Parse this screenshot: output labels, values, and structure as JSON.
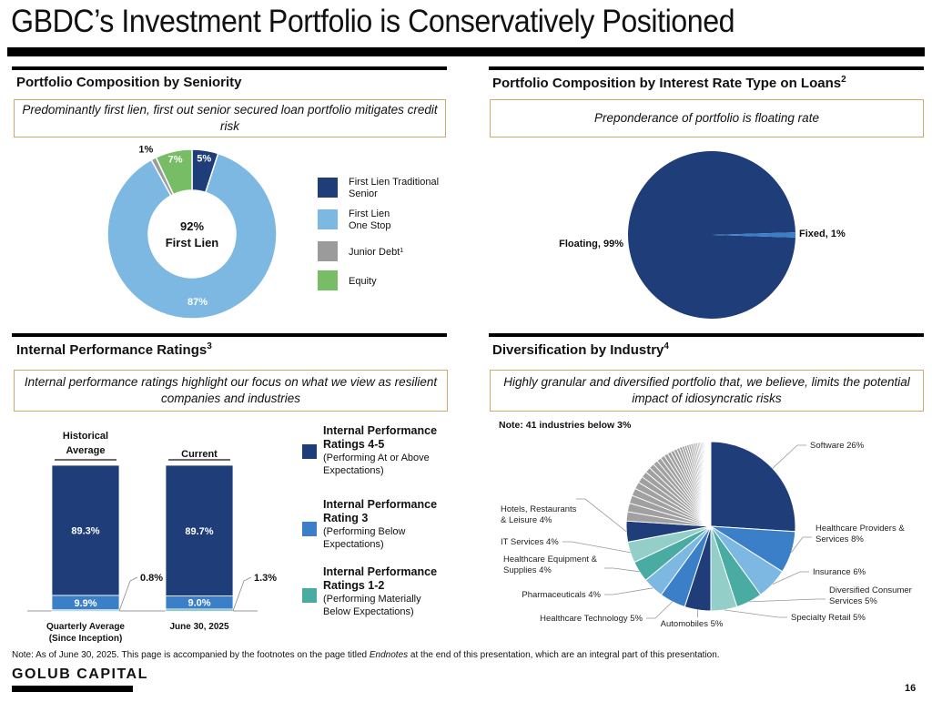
{
  "page": {
    "title": "GBDC’s Investment Portfolio is Conservatively Positioned",
    "footnote_prefix": "Note: As of June 30, 2025. This page is accompanied by the footnotes on the page titled ",
    "footnote_italic": "Endnotes",
    "footnote_suffix": " at the end of this presentation, which are an integral part of this presentation.",
    "brand": "GOLUB CAPITAL",
    "page_number": "16"
  },
  "sections": {
    "seniority": {
      "title": "Portfolio Composition by Seniority",
      "callout": "Predominantly first lien, first out senior secured loan portfolio mitigates credit risk",
      "center_value": "92%",
      "center_label": "First Lien"
    },
    "interest_rate": {
      "title": "Portfolio Composition by Interest Rate Type on Loans",
      "title_sup": "2",
      "callout": "Preponderance of portfolio is floating rate"
    },
    "performance": {
      "title": "Internal Performance Ratings",
      "title_sup": "3",
      "callout": "Internal performance ratings highlight our focus on what we view as resilient companies and industries"
    },
    "industry": {
      "title": "Diversification by Industry",
      "title_sup": "4",
      "callout": "Highly granular and diversified portfolio that, we believe, limits the potential impact of idiosyncratic risks",
      "note": "Note: 41 industries below 3%"
    }
  },
  "chart_data": [
    {
      "type": "pie",
      "variant": "donut",
      "title": "Portfolio Composition by Seniority",
      "slices": [
        {
          "label": "First Lien Traditional Senior",
          "legend_line1": "First Lien Traditional",
          "legend_line2": "Senior",
          "value": 5,
          "display": "5%",
          "color": "#1f3d78"
        },
        {
          "label": "First Lien One Stop",
          "legend_line1": "First Lien",
          "legend_line2": "One Stop",
          "value": 87,
          "display": "87%",
          "color": "#7db8e3"
        },
        {
          "label": "Junior Debt",
          "legend_line1": "Junior Debt",
          "legend_sup": "1",
          "legend_line2": "",
          "value": 1,
          "display": "1%",
          "color": "#9b9b9b"
        },
        {
          "label": "Equity",
          "legend_line1": "Equity",
          "legend_line2": "",
          "value": 7,
          "display": "7%",
          "color": "#76bd65"
        }
      ],
      "legend_placement": "right"
    },
    {
      "type": "pie",
      "title": "Portfolio Composition by Interest Rate Type on Loans",
      "slices": [
        {
          "label": "Floating",
          "value": 99,
          "display": "Floating, 99%",
          "color": "#1f3d78"
        },
        {
          "label": "Fixed",
          "value": 1,
          "display": "Fixed, 1%",
          "color": "#3b7fc8"
        }
      ]
    },
    {
      "type": "bar",
      "stacked": true,
      "title": "Internal Performance Ratings",
      "categories": [
        {
          "header": "Historical Average",
          "header_line1": "Historical",
          "header_line2": "Average",
          "label_line1": "Quarterly Average",
          "label_line2": "(Since Inception)"
        },
        {
          "header": "Current",
          "header_line1": "Current",
          "header_line2": "",
          "label_line1": "June 30, 2025",
          "label_line2": ""
        }
      ],
      "series": [
        {
          "name": "Internal Performance Ratings 4-5",
          "title_line1": "Internal Performance",
          "title_line2": "Ratings 4-5",
          "sub_line1": "(Performing At or Above",
          "sub_line2": "Expectations)",
          "values": [
            89.3,
            89.7
          ],
          "labels": [
            "89.3%",
            "89.7%"
          ],
          "color": "#1f3d78"
        },
        {
          "name": "Internal Performance Rating 3",
          "title_line1": "Internal Performance",
          "title_line2": "Rating 3",
          "sub_line1": "(Performing Below",
          "sub_line2": "Expectations)",
          "values": [
            9.9,
            9.0
          ],
          "labels": [
            "9.9%",
            "9.0%"
          ],
          "color": "#3b7fc8"
        },
        {
          "name": "Internal Performance Ratings 1-2",
          "title_line1": "Internal Performance",
          "title_line2": "Ratings 1-2",
          "sub_line1": "(Performing Materially",
          "sub_line2": "Below Expectations)",
          "values": [
            0.8,
            1.3
          ],
          "labels": [
            "0.8%",
            "1.3%"
          ],
          "color": "#4aaba3"
        }
      ],
      "ylim": [
        0,
        100
      ]
    },
    {
      "type": "pie",
      "title": "Diversification by Industry",
      "slices": [
        {
          "label": "Software",
          "value": 26,
          "display": "Software 26%",
          "color": "#1f3d78"
        },
        {
          "label": "Healthcare Providers & Services",
          "value": 8,
          "display_line1": "Healthcare Providers &",
          "display_line2": "Services 8%",
          "color": "#3b7fc8"
        },
        {
          "label": "Insurance",
          "value": 6,
          "display": "Insurance 6%",
          "color": "#7db8e3"
        },
        {
          "label": "Diversified Consumer Services",
          "value": 5,
          "display_line1": "Diversified Consumer",
          "display_line2": "Services 5%",
          "color": "#4aaba3"
        },
        {
          "label": "Specialty Retail",
          "value": 5,
          "display": "Specialty Retail 5%",
          "color": "#93cfc8"
        },
        {
          "label": "Automobiles",
          "value": 5,
          "display": "Automobiles 5%",
          "color": "#1f3d78"
        },
        {
          "label": "Healthcare Technology",
          "value": 5,
          "display": "Healthcare Technology 5%",
          "color": "#3b7fc8"
        },
        {
          "label": "Pharmaceuticals",
          "value": 4,
          "display": "Pharmaceuticals 4%",
          "color": "#7db8e3"
        },
        {
          "label": "Healthcare Equipment & Supplies",
          "value": 4,
          "display_line1": "Healthcare Equipment &",
          "display_line2": "Supplies 4%",
          "color": "#4aaba3"
        },
        {
          "label": "IT Services",
          "value": 4,
          "display": "IT Services 4%",
          "color": "#93cfc8"
        },
        {
          "label": "Hotels, Restaurants & Leisure",
          "value": 4,
          "display_line1": "Hotels, Restaurants",
          "display_line2": "& Leisure 4%",
          "color": "#1f3d78"
        },
        {
          "label": "Other (41 industries below 3%)",
          "value": 24,
          "count": 41,
          "color": "#a0a0a0"
        }
      ]
    }
  ]
}
